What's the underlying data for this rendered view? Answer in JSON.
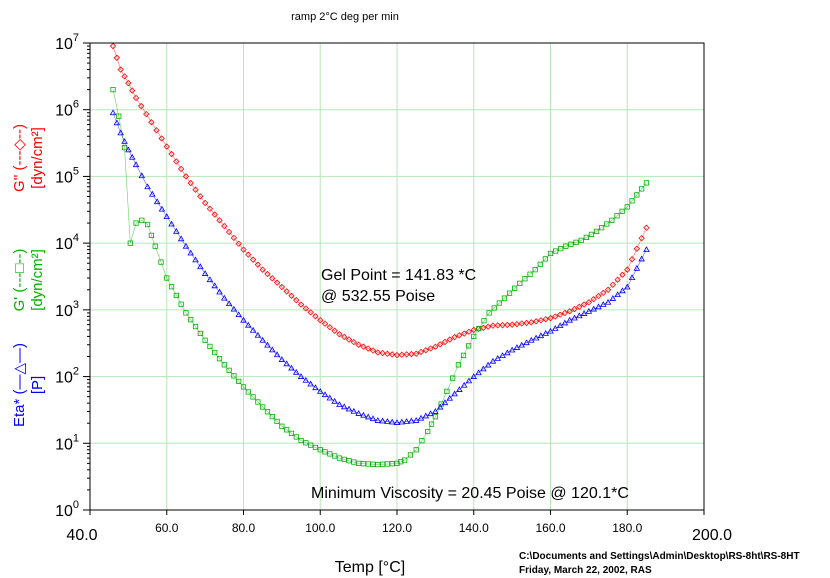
{
  "chart_data": {
    "type": "scatter",
    "title": "ramp 2°C  deg per min",
    "xlabel": "Temp [°C]",
    "xlim": [
      40,
      200
    ],
    "x_ticks": [
      "40.0",
      "60.0",
      "80.0",
      "100.0",
      "120.0",
      "140.0",
      "160.0",
      "180.0",
      "200.0"
    ],
    "ylim": [
      1,
      10000000
    ],
    "y_scale": "log",
    "y_ticks": [
      {
        "base": "10",
        "exp": "0"
      },
      {
        "base": "10",
        "exp": "1"
      },
      {
        "base": "10",
        "exp": "2"
      },
      {
        "base": "10",
        "exp": "3"
      },
      {
        "base": "10",
        "exp": "4"
      },
      {
        "base": "10",
        "exp": "5"
      },
      {
        "base": "10",
        "exp": "6"
      },
      {
        "base": "10",
        "exp": "7"
      }
    ],
    "grid": true,
    "series": [
      {
        "name": "G'' (---◇--)",
        "unit": "[dyn/cm²]",
        "marker": "diamond",
        "color": "#ff0000",
        "points": [
          [
            46,
            9000000
          ],
          [
            48,
            4000000
          ],
          [
            50,
            2500000
          ],
          [
            52,
            1500000
          ],
          [
            56,
            650000
          ],
          [
            60,
            280000
          ],
          [
            65,
            100000
          ],
          [
            70,
            40000
          ],
          [
            75,
            18000
          ],
          [
            80,
            8000
          ],
          [
            85,
            4000
          ],
          [
            90,
            2200
          ],
          [
            95,
            1200
          ],
          [
            100,
            700
          ],
          [
            105,
            430
          ],
          [
            110,
            300
          ],
          [
            115,
            230
          ],
          [
            120,
            210
          ],
          [
            125,
            220
          ],
          [
            130,
            280
          ],
          [
            135,
            390
          ],
          [
            140,
            500
          ],
          [
            145,
            580
          ],
          [
            150,
            600
          ],
          [
            155,
            650
          ],
          [
            160,
            750
          ],
          [
            165,
            950
          ],
          [
            170,
            1300
          ],
          [
            175,
            2000
          ],
          [
            180,
            4000
          ],
          [
            185,
            17000
          ]
        ]
      },
      {
        "name": "G' (---□--)",
        "unit": "[dyn/cm²]",
        "marker": "square",
        "color": "#00b000",
        "points": [
          [
            46,
            2000000
          ],
          [
            47.5,
            800000
          ],
          [
            49,
            270000
          ],
          [
            50.5,
            10000
          ],
          [
            52,
            20000
          ],
          [
            53.5,
            22000
          ],
          [
            55,
            19000
          ],
          [
            57,
            9000
          ],
          [
            60,
            3000
          ],
          [
            65,
            900
          ],
          [
            70,
            350
          ],
          [
            75,
            150
          ],
          [
            80,
            70
          ],
          [
            85,
            35
          ],
          [
            90,
            18
          ],
          [
            95,
            11
          ],
          [
            100,
            8
          ],
          [
            105,
            6
          ],
          [
            110,
            5
          ],
          [
            115,
            4.8
          ],
          [
            120,
            5
          ],
          [
            122,
            5.6
          ],
          [
            125,
            8
          ],
          [
            128,
            15
          ],
          [
            130,
            25
          ],
          [
            133,
            60
          ],
          [
            136,
            150
          ],
          [
            140,
            400
          ],
          [
            144,
            900
          ],
          [
            148,
            1500
          ],
          [
            152,
            2500
          ],
          [
            156,
            4000
          ],
          [
            160,
            7000
          ],
          [
            164,
            9000
          ],
          [
            168,
            11000
          ],
          [
            172,
            15000
          ],
          [
            176,
            22000
          ],
          [
            180,
            35000
          ],
          [
            185,
            80000
          ]
        ]
      },
      {
        "name": "Eta* (—△—)",
        "unit": "[P]",
        "marker": "triangle",
        "color": "#0000ff",
        "points": [
          [
            46,
            900000
          ],
          [
            48,
            450000
          ],
          [
            50,
            250000
          ],
          [
            52,
            150000
          ],
          [
            55,
            70000
          ],
          [
            60,
            25000
          ],
          [
            65,
            9000
          ],
          [
            70,
            3500
          ],
          [
            75,
            1500
          ],
          [
            80,
            700
          ],
          [
            85,
            350
          ],
          [
            90,
            180
          ],
          [
            95,
            100
          ],
          [
            100,
            60
          ],
          [
            105,
            38
          ],
          [
            110,
            28
          ],
          [
            115,
            22
          ],
          [
            120,
            20.45
          ],
          [
            125,
            22
          ],
          [
            130,
            30
          ],
          [
            135,
            55
          ],
          [
            140,
            100
          ],
          [
            145,
            170
          ],
          [
            150,
            250
          ],
          [
            155,
            350
          ],
          [
            160,
            480
          ],
          [
            165,
            700
          ],
          [
            170,
            950
          ],
          [
            175,
            1300
          ],
          [
            180,
            2200
          ],
          [
            185,
            8000
          ]
        ]
      }
    ],
    "annotations": [
      {
        "line1": "Gel Point = 141.83 *C",
        "line2": "@ 532.55 Poise"
      },
      {
        "line1": "Minimum Viscosity = 20.45 Poise @ 120.1*C"
      }
    ]
  },
  "footer": {
    "path": "C:\\Documents and Settings\\Admin\\Desktop\\RS-8ht\\RS-8HT",
    "date": " Friday, March 22, 2002, RAS"
  }
}
